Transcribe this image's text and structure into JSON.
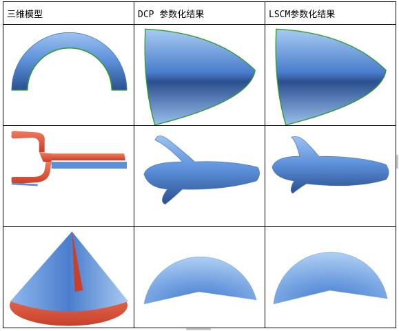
{
  "table": {
    "headers": [
      "三维模型",
      "DCP 参数化结果",
      "LSCM参数化结果"
    ]
  },
  "colors": {
    "surface_blue": "#5b8fd9",
    "surface_light": "#a9cbf2",
    "surface_dark": "#2c4f8f",
    "inner_red": "#e0553a",
    "boundary_green": "#2e9e2e"
  },
  "figures": {
    "row1": [
      "torus-arch-icon",
      "dcp-leaf-icon",
      "lscm-leaf-icon"
    ],
    "row2": [
      "trident-icon",
      "dcp-fish-icon",
      "lscm-fish-icon"
    ],
    "row3": [
      "cone-icon",
      "dcp-fan-icon",
      "lscm-fan-icon"
    ]
  }
}
